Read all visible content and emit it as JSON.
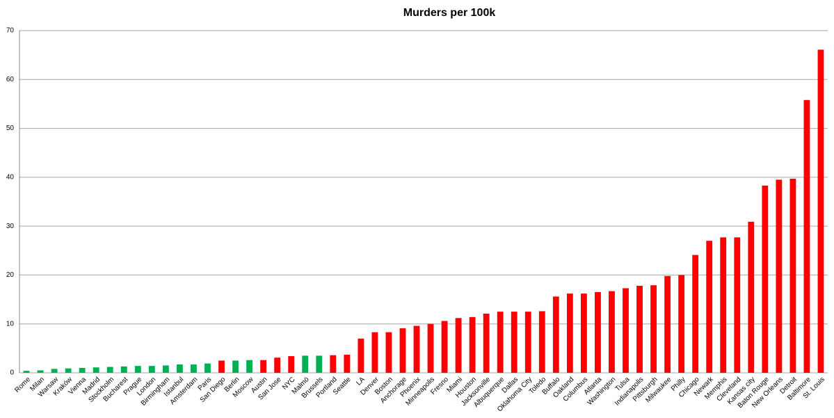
{
  "chart_data": {
    "type": "bar",
    "title": "Murders per 100k",
    "categories": [
      "Rome",
      "Milan",
      "Warsaw",
      "Kraków",
      "Vienna",
      "Madrid",
      "Stockholm",
      "Bucharest",
      "Prague",
      "London",
      "Birmingham",
      "Istanbul",
      "Amsterdam",
      "Paris",
      "San Diego",
      "Berlin",
      "Moscow",
      "Austin",
      "San Jose",
      "NYC",
      "Malmö",
      "Brussels",
      "Portland",
      "Seattle",
      "LA",
      "Denver",
      "Boston",
      "Anchorage",
      "Phoenix",
      "Minneapolis",
      "Fresno",
      "Miami",
      "Houston",
      "Jacksonville",
      "Albuquerque",
      "Dallas",
      "Oklahoma City",
      "Toledo",
      "Buffalo",
      "Oakland",
      "Columbus",
      "Atlanta",
      "Washington",
      "Tulsa",
      "Indianapolis",
      "Pittsburgh",
      "Milwaukee",
      "Philly",
      "Chicago",
      "Newark",
      "Memphis",
      "Cleveland",
      "Kansas city",
      "Baton Rouge",
      "New Orleans",
      "Detroit",
      "Baltimore",
      "St. Louis"
    ],
    "values": [
      0.4,
      0.5,
      0.8,
      0.9,
      1.0,
      1.1,
      1.2,
      1.3,
      1.4,
      1.4,
      1.5,
      1.7,
      1.7,
      1.9,
      2.5,
      2.5,
      2.6,
      2.6,
      3.1,
      3.4,
      3.5,
      3.5,
      3.6,
      3.7,
      7.0,
      8.3,
      8.3,
      9.1,
      9.6,
      10.0,
      10.6,
      11.2,
      11.4,
      12.1,
      12.5,
      12.5,
      12.5,
      12.6,
      15.6,
      16.2,
      16.2,
      16.5,
      16.7,
      17.3,
      17.8,
      17.9,
      19.8,
      20.0,
      24.1,
      27.0,
      27.7,
      27.7,
      30.9,
      38.3,
      39.5,
      39.7,
      55.8,
      66.1
    ],
    "colors": [
      "#00b050",
      "#00b050",
      "#00b050",
      "#00b050",
      "#00b050",
      "#00b050",
      "#00b050",
      "#00b050",
      "#00b050",
      "#00b050",
      "#00b050",
      "#00b050",
      "#00b050",
      "#00b050",
      "#ff0000",
      "#00b050",
      "#00b050",
      "#ff0000",
      "#ff0000",
      "#ff0000",
      "#00b050",
      "#00b050",
      "#ff0000",
      "#ff0000",
      "#ff0000",
      "#ff0000",
      "#ff0000",
      "#ff0000",
      "#ff0000",
      "#ff0000",
      "#ff0000",
      "#ff0000",
      "#ff0000",
      "#ff0000",
      "#ff0000",
      "#ff0000",
      "#ff0000",
      "#ff0000",
      "#ff0000",
      "#ff0000",
      "#ff0000",
      "#ff0000",
      "#ff0000",
      "#ff0000",
      "#ff0000",
      "#ff0000",
      "#ff0000",
      "#ff0000",
      "#ff0000",
      "#ff0000",
      "#ff0000",
      "#ff0000",
      "#ff0000",
      "#ff0000",
      "#ff0000",
      "#ff0000",
      "#ff0000",
      "#ff0000"
    ],
    "ylim": [
      0,
      70
    ],
    "yticks": [
      0,
      10,
      20,
      30,
      40,
      50,
      60,
      70
    ],
    "grid": true
  }
}
